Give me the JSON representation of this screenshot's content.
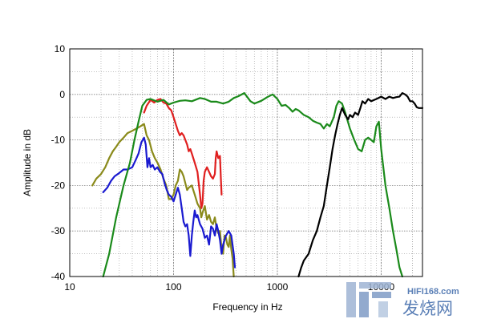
{
  "chart_data": {
    "type": "line",
    "title": "",
    "xlabel": "Frequency in Hz",
    "ylabel": "Amplitude in dB",
    "xscale": "log",
    "xlim": [
      10,
      25000
    ],
    "ylim": [
      -40,
      10
    ],
    "x_ticks": [
      10,
      100,
      1000,
      10000
    ],
    "x_tick_labels": [
      "10",
      "100",
      "1000",
      "10000"
    ],
    "y_ticks": [
      10,
      0,
      -10,
      -20,
      -30,
      -40
    ],
    "y_tick_labels": [
      "10",
      "0",
      "-10",
      "-20",
      "-30",
      "-40"
    ],
    "grid": true,
    "series": [
      {
        "color": "#1a8a1a",
        "points": [
          [
            21,
            -40
          ],
          [
            24,
            -35
          ],
          [
            28,
            -27
          ],
          [
            33,
            -20
          ],
          [
            38,
            -15
          ],
          [
            42,
            -10
          ],
          [
            46,
            -6
          ],
          [
            50,
            -2.5
          ],
          [
            55,
            -1.2
          ],
          [
            60,
            -1.0
          ],
          [
            70,
            -1.6
          ],
          [
            80,
            -1.2
          ],
          [
            90,
            -2.2
          ],
          [
            100,
            -1.8
          ],
          [
            115,
            -1.4
          ],
          [
            130,
            -1.3
          ],
          [
            150,
            -1.5
          ],
          [
            180,
            -0.8
          ],
          [
            200,
            -1.0
          ],
          [
            230,
            -1.6
          ],
          [
            260,
            -1.6
          ],
          [
            300,
            -2.0
          ],
          [
            340,
            -1.6
          ],
          [
            380,
            -0.8
          ],
          [
            420,
            -0.4
          ],
          [
            480,
            0.3
          ],
          [
            550,
            -1.5
          ],
          [
            600,
            -2.0
          ],
          [
            700,
            -1.4
          ],
          [
            800,
            -0.6
          ],
          [
            900,
            0.0
          ],
          [
            1000,
            -1.0
          ],
          [
            1100,
            -2.5
          ],
          [
            1200,
            -2.3
          ],
          [
            1300,
            -3.0
          ],
          [
            1400,
            -3.8
          ],
          [
            1500,
            -3.2
          ],
          [
            1600,
            -3.5
          ],
          [
            1800,
            -4.5
          ],
          [
            2000,
            -5.0
          ],
          [
            2200,
            -5.8
          ],
          [
            2400,
            -6.2
          ],
          [
            2600,
            -6.5
          ],
          [
            2800,
            -7.5
          ],
          [
            3000,
            -6.5
          ],
          [
            3200,
            -7.0
          ],
          [
            3500,
            -5.0
          ],
          [
            3700,
            -2.5
          ],
          [
            3900,
            -1.5
          ],
          [
            4200,
            -2.0
          ],
          [
            4500,
            -4.0
          ],
          [
            5000,
            -7.5
          ],
          [
            5500,
            -10.0
          ],
          [
            6000,
            -12.0
          ],
          [
            6500,
            -12.5
          ],
          [
            7000,
            -10.0
          ],
          [
            7500,
            -9.5
          ],
          [
            8000,
            -10.0
          ],
          [
            8500,
            -10.5
          ],
          [
            9000,
            -7.0
          ],
          [
            9500,
            -6.0
          ],
          [
            10000,
            -12.0
          ],
          [
            11000,
            -20.0
          ],
          [
            12000,
            -25.0
          ],
          [
            13000,
            -30.0
          ],
          [
            14000,
            -34.0
          ],
          [
            15000,
            -38.0
          ],
          [
            16000,
            -40.0
          ]
        ]
      },
      {
        "color": "#e01f1f",
        "points": [
          [
            52,
            -4.0
          ],
          [
            55,
            -2.5
          ],
          [
            60,
            -1.2
          ],
          [
            65,
            -1.8
          ],
          [
            70,
            -1.2
          ],
          [
            75,
            -1.0
          ],
          [
            80,
            -1.8
          ],
          [
            85,
            -2.0
          ],
          [
            90,
            -3.0
          ],
          [
            95,
            -3.5
          ],
          [
            100,
            -5.0
          ],
          [
            105,
            -6.5
          ],
          [
            110,
            -8.0
          ],
          [
            115,
            -9.0
          ],
          [
            120,
            -8.5
          ],
          [
            125,
            -9.0
          ],
          [
            130,
            -10.0
          ],
          [
            135,
            -11.0
          ],
          [
            140,
            -12.5
          ],
          [
            145,
            -12.0
          ],
          [
            150,
            -13.0
          ],
          [
            160,
            -15.0
          ],
          [
            170,
            -17.0
          ],
          [
            180,
            -22.0
          ],
          [
            185,
            -25.0
          ],
          [
            190,
            -24.0
          ],
          [
            195,
            -19.0
          ],
          [
            200,
            -17.0
          ],
          [
            210,
            -16.0
          ],
          [
            220,
            -17.0
          ],
          [
            230,
            -18.0
          ],
          [
            240,
            -18.5
          ],
          [
            250,
            -17.5
          ],
          [
            255,
            -14.0
          ],
          [
            260,
            -12.5
          ],
          [
            270,
            -14.0
          ],
          [
            280,
            -13.5
          ],
          [
            285,
            -18.0
          ],
          [
            290,
            -22.0
          ]
        ]
      },
      {
        "color": "#8a8a1a",
        "points": [
          [
            16.5,
            -20.0
          ],
          [
            18,
            -18.5
          ],
          [
            20,
            -17.5
          ],
          [
            22,
            -16.0
          ],
          [
            24,
            -14.0
          ],
          [
            26,
            -12.5
          ],
          [
            28,
            -11.5
          ],
          [
            30,
            -10.5
          ],
          [
            33,
            -9.5
          ],
          [
            36,
            -8.5
          ],
          [
            40,
            -8.0
          ],
          [
            44,
            -7.5
          ],
          [
            48,
            -7.0
          ],
          [
            52,
            -6.5
          ],
          [
            55,
            -9.0
          ],
          [
            58,
            -10.0
          ],
          [
            62,
            -12.5
          ],
          [
            66,
            -14.0
          ],
          [
            70,
            -15.0
          ],
          [
            75,
            -16.5
          ],
          [
            80,
            -18.5
          ],
          [
            85,
            -20.0
          ],
          [
            90,
            -23.0
          ],
          [
            95,
            -23.0
          ],
          [
            100,
            -22.0
          ],
          [
            105,
            -20.0
          ],
          [
            110,
            -19.0
          ],
          [
            115,
            -16.5
          ],
          [
            120,
            -17.0
          ],
          [
            125,
            -18.0
          ],
          [
            130,
            -19.5
          ],
          [
            135,
            -21.0
          ],
          [
            140,
            -20.5
          ],
          [
            150,
            -20.0
          ],
          [
            160,
            -22.0
          ],
          [
            170,
            -24.0
          ],
          [
            180,
            -25.0
          ],
          [
            185,
            -27.0
          ],
          [
            190,
            -26.0
          ],
          [
            200,
            -24.5
          ],
          [
            210,
            -27.5
          ],
          [
            220,
            -26.5
          ],
          [
            230,
            -28.0
          ],
          [
            240,
            -28.5
          ],
          [
            250,
            -27.0
          ],
          [
            260,
            -29.5
          ],
          [
            270,
            -30.5
          ],
          [
            280,
            -30.0
          ],
          [
            290,
            -34.0
          ],
          [
            300,
            -35.0
          ],
          [
            310,
            -31.0
          ],
          [
            320,
            -31.5
          ],
          [
            330,
            -33.0
          ],
          [
            340,
            -33.5
          ],
          [
            350,
            -31.0
          ],
          [
            360,
            -34.0
          ],
          [
            370,
            -36.0
          ],
          [
            380,
            -40.0
          ]
        ]
      },
      {
        "color": "#1a1ad0",
        "points": [
          [
            21,
            -21.5
          ],
          [
            23,
            -20.5
          ],
          [
            25,
            -19.0
          ],
          [
            27,
            -18.0
          ],
          [
            29,
            -17.5
          ],
          [
            31,
            -17.0
          ],
          [
            33,
            -16.5
          ],
          [
            36,
            -16.5
          ],
          [
            40,
            -16.0
          ],
          [
            43,
            -14.5
          ],
          [
            46,
            -13.0
          ],
          [
            49,
            -10.5
          ],
          [
            52,
            -9.5
          ],
          [
            54,
            -11.0
          ],
          [
            56,
            -16.0
          ],
          [
            58,
            -14.0
          ],
          [
            60,
            -16.0
          ],
          [
            63,
            -15.5
          ],
          [
            66,
            -16.5
          ],
          [
            70,
            -16.0
          ],
          [
            74,
            -17.0
          ],
          [
            78,
            -17.5
          ],
          [
            82,
            -19.5
          ],
          [
            86,
            -21.0
          ],
          [
            90,
            -22.0
          ],
          [
            95,
            -22.5
          ],
          [
            100,
            -23.5
          ],
          [
            105,
            -22.0
          ],
          [
            110,
            -20.5
          ],
          [
            115,
            -22.0
          ],
          [
            120,
            -25.0
          ],
          [
            125,
            -28.0
          ],
          [
            130,
            -29.0
          ],
          [
            135,
            -28.5
          ],
          [
            140,
            -31.0
          ],
          [
            145,
            -35.5
          ],
          [
            150,
            -31.0
          ],
          [
            155,
            -28.0
          ],
          [
            160,
            -25.5
          ],
          [
            165,
            -27.0
          ],
          [
            170,
            -26.5
          ],
          [
            180,
            -28.5
          ],
          [
            190,
            -29.5
          ],
          [
            200,
            -31.5
          ],
          [
            210,
            -31.0
          ],
          [
            220,
            -33.0
          ],
          [
            230,
            -29.0
          ],
          [
            240,
            -29.5
          ],
          [
            250,
            -31.0
          ],
          [
            260,
            -28.5
          ],
          [
            270,
            -30.0
          ],
          [
            280,
            -32.0
          ],
          [
            290,
            -35.0
          ],
          [
            300,
            -33.0
          ],
          [
            320,
            -31.0
          ],
          [
            340,
            -30.0
          ],
          [
            360,
            -31.0
          ],
          [
            380,
            -35.0
          ],
          [
            390,
            -38.0
          ]
        ]
      },
      {
        "color": "#000000",
        "points": [
          [
            1600,
            -40.0
          ],
          [
            1700,
            -38.0
          ],
          [
            1800,
            -36.5
          ],
          [
            2000,
            -35.0
          ],
          [
            2200,
            -32.0
          ],
          [
            2400,
            -30.0
          ],
          [
            2600,
            -27.0
          ],
          [
            2800,
            -24.5
          ],
          [
            3000,
            -20.0
          ],
          [
            3200,
            -16.0
          ],
          [
            3400,
            -12.0
          ],
          [
            3600,
            -9.0
          ],
          [
            3800,
            -6.5
          ],
          [
            4000,
            -4.5
          ],
          [
            4200,
            -3.0
          ],
          [
            4500,
            -4.5
          ],
          [
            4800,
            -5.5
          ],
          [
            5000,
            -4.5
          ],
          [
            5300,
            -5.0
          ],
          [
            5600,
            -4.0
          ],
          [
            6000,
            -4.5
          ],
          [
            6300,
            -3.0
          ],
          [
            6600,
            -1.5
          ],
          [
            7000,
            -2.0
          ],
          [
            7500,
            -1.0
          ],
          [
            8000,
            -1.5
          ],
          [
            9000,
            -1.0
          ],
          [
            10000,
            -0.5
          ],
          [
            11000,
            -1.0
          ],
          [
            12000,
            -0.5
          ],
          [
            13000,
            -0.8
          ],
          [
            14000,
            -0.6
          ],
          [
            15000,
            -0.5
          ],
          [
            16000,
            0.3
          ],
          [
            17000,
            0.0
          ],
          [
            18000,
            -0.5
          ],
          [
            19000,
            -1.5
          ],
          [
            20000,
            -1.5
          ],
          [
            21000,
            -2.0
          ],
          [
            22000,
            -2.8
          ],
          [
            23000,
            -3.0
          ],
          [
            24000,
            -3.0
          ],
          [
            25000,
            -3.0
          ]
        ]
      }
    ]
  },
  "watermark": {
    "site": "HIFI168.com",
    "cn_text": "发烧网"
  },
  "colors": {
    "grid": "#9a9a9a",
    "frame": "#000000",
    "watermark": "#5a7fb6"
  }
}
